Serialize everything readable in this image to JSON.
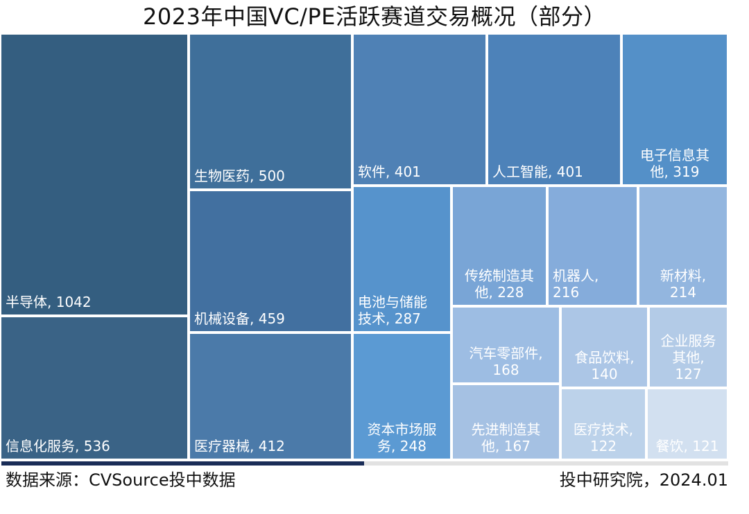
{
  "chart_data": {
    "type": "treemap",
    "title": "2023年中国VC/PE活跃赛道交易概况（部分）",
    "items": [
      {
        "name": "半导体",
        "value": 1042,
        "label": "半导体, 1042",
        "color": "#345e80"
      },
      {
        "name": "信息化服务",
        "value": 536,
        "label": "信息化服务, 536",
        "color": "#3a6386"
      },
      {
        "name": "生物医药",
        "value": 500,
        "label": "生物医药, 500",
        "color": "#3f6f9a"
      },
      {
        "name": "机械设备",
        "value": 459,
        "label": "机械设备, 459",
        "color": "#4270a0"
      },
      {
        "name": "医疗器械",
        "value": 412,
        "label": "医疗器械, 412",
        "color": "#4b7aa9"
      },
      {
        "name": "软件",
        "value": 401,
        "label": "软件, 401",
        "color": "#4f81b5"
      },
      {
        "name": "人工智能",
        "value": 401,
        "label": "人工智能, 401",
        "color": "#4d82b9"
      },
      {
        "name": "电子信息其他",
        "value": 319,
        "label": "电子信息其\n他, 319",
        "color": "#5490c8"
      },
      {
        "name": "电池与储能技术",
        "value": 287,
        "label": "电池与储能\n技术, 287",
        "color": "#5693cc"
      },
      {
        "name": "资本市场服务",
        "value": 248,
        "label": "资本市场服\n务, 248",
        "color": "#5b9ad3"
      },
      {
        "name": "传统制造其他",
        "value": 228,
        "label": "传统制造其\n他, 228",
        "color": "#79a5d6"
      },
      {
        "name": "机器人",
        "value": 216,
        "label": "机器人,\n216",
        "color": "#85acdb"
      },
      {
        "name": "新材料",
        "value": 214,
        "label": "新材料,\n214",
        "color": "#93b6df"
      },
      {
        "name": "汽车零部件",
        "value": 168,
        "label": "汽车零部件,\n168",
        "color": "#9dbde3"
      },
      {
        "name": "食品饮料",
        "value": 140,
        "label": "食品饮料,\n140",
        "color": "#acc6e6"
      },
      {
        "name": "企业服务其他",
        "value": 127,
        "label": "企业服务\n其他,\n127",
        "color": "#b3cbe7"
      },
      {
        "name": "先进制造其他",
        "value": 167,
        "label": "先进制造其\n他, 167",
        "color": "#a5c1e3"
      },
      {
        "name": "医疗技术",
        "value": 122,
        "label": "医疗技术,\n122",
        "color": "#bcd2ea"
      },
      {
        "name": "餐饮",
        "value": 121,
        "label": "餐饮, 121",
        "color": "#d2e0f0"
      }
    ]
  },
  "footer": {
    "source": "数据来源：CVSource投中数据",
    "credit": "投中研究院，2024.01"
  }
}
